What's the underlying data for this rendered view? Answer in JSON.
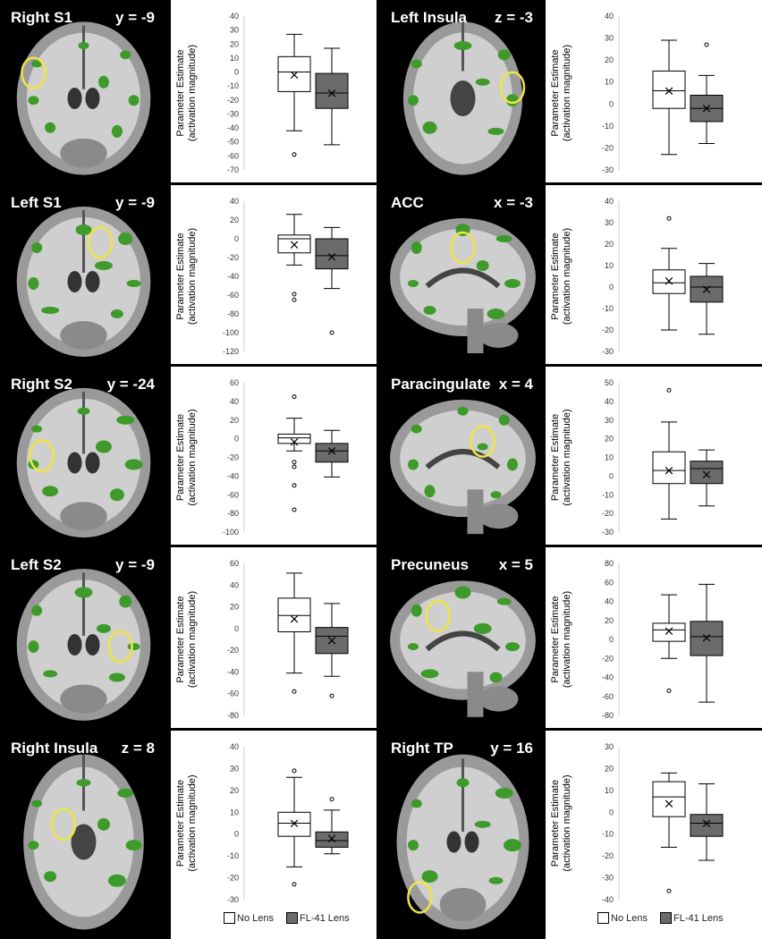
{
  "colors": {
    "no_lens": "#ffffff",
    "fl41_lens": "#6b6b6b",
    "highlight": "#f0e442",
    "activation": "#3e9a2a"
  },
  "legend": {
    "no_lens": "No Lens",
    "fl41": "FL-41 Lens"
  },
  "chart_data": [
    {
      "type": "box",
      "region": "Right S1",
      "coord": "y = -9",
      "view": "coronal",
      "ylabel": "Parameter Estimate",
      "ylabel2": "(activation magnitude)",
      "ylim": [
        -70,
        40
      ],
      "ticks": [
        40,
        30,
        20,
        10,
        0,
        -10,
        -20,
        -30,
        -40,
        -50,
        -60,
        -70
      ],
      "series": [
        {
          "name": "No Lens",
          "whisker_low": -42,
          "q1": -14,
          "median": 0,
          "q3": 11,
          "whisker_high": 27,
          "mean": -2,
          "outliers": [
            -59
          ]
        },
        {
          "name": "FL-41 Lens",
          "whisker_low": -52,
          "q1": -26,
          "median": -15,
          "q3": -1,
          "whisker_high": 17,
          "mean": -15,
          "outliers": []
        }
      ]
    },
    {
      "type": "box",
      "region": "Left Insula",
      "coord": "z = -3",
      "view": "axial",
      "ylabel": "Parameter Estimate",
      "ylabel2": "(activation magnitude)",
      "ylim": [
        -30,
        40
      ],
      "ticks": [
        40,
        30,
        20,
        10,
        0,
        -10,
        -20,
        -30
      ],
      "series": [
        {
          "name": "No Lens",
          "whisker_low": -23,
          "q1": -2,
          "median": 6,
          "q3": 15,
          "whisker_high": 29,
          "mean": 6,
          "outliers": []
        },
        {
          "name": "FL-41 Lens",
          "whisker_low": -18,
          "q1": -8,
          "median": -2,
          "q3": 4,
          "whisker_high": 13,
          "mean": -2,
          "outliers": [
            27
          ]
        }
      ]
    },
    {
      "type": "box",
      "region": "Left S1",
      "coord": "y = -9",
      "view": "coronal",
      "ylabel": "Parameter Estimate",
      "ylabel2": "(activation magnitude)",
      "ylim": [
        -120,
        40
      ],
      "ticks": [
        40,
        20,
        0,
        -20,
        -40,
        -60,
        -80,
        -100,
        -120
      ],
      "series": [
        {
          "name": "No Lens",
          "whisker_low": -28,
          "q1": -15,
          "median": 0,
          "q3": 4,
          "whisker_high": 26,
          "mean": -6,
          "outliers": [
            -59,
            -65
          ]
        },
        {
          "name": "FL-41 Lens",
          "whisker_low": -53,
          "q1": -32,
          "median": -18,
          "q3": 0,
          "whisker_high": 12,
          "mean": -19,
          "outliers": [
            -100
          ]
        }
      ]
    },
    {
      "type": "box",
      "region": "ACC",
      "coord": "x = -3",
      "view": "sagittal",
      "ylabel": "Parameter Estimate",
      "ylabel2": "(activation magnitude)",
      "ylim": [
        -30,
        40
      ],
      "ticks": [
        40,
        30,
        20,
        10,
        0,
        -10,
        -20,
        -30
      ],
      "series": [
        {
          "name": "No Lens",
          "whisker_low": -20,
          "q1": -3,
          "median": 2,
          "q3": 8,
          "whisker_high": 18,
          "mean": 3,
          "outliers": [
            32
          ]
        },
        {
          "name": "FL-41 Lens",
          "whisker_low": -22,
          "q1": -7,
          "median": 0,
          "q3": 5,
          "whisker_high": 11,
          "mean": -1,
          "outliers": []
        }
      ]
    },
    {
      "type": "box",
      "region": "Right S2",
      "coord": "y = -24",
      "view": "coronal",
      "ylabel": "Parameter Estimate",
      "ylabel2": "(activation magnitude)",
      "ylim": [
        -100,
        60
      ],
      "ticks": [
        60,
        40,
        20,
        0,
        -20,
        -40,
        -60,
        -80,
        -100
      ],
      "series": [
        {
          "name": "No Lens",
          "whisker_low": -13,
          "q1": -5,
          "median": 1,
          "q3": 5,
          "whisker_high": 22,
          "mean": -3,
          "outliers": [
            45,
            -25,
            -30,
            -50,
            -76
          ]
        },
        {
          "name": "FL-41 Lens",
          "whisker_low": -41,
          "q1": -25,
          "median": -13,
          "q3": -5,
          "whisker_high": 9,
          "mean": -13,
          "outliers": []
        }
      ]
    },
    {
      "type": "box",
      "region": "Paracingulate",
      "coord": "x = 4",
      "view": "sagittal",
      "ylabel": "Parameter Estimate",
      "ylabel2": "(activation magnitude)",
      "ylim": [
        -30,
        50
      ],
      "ticks": [
        50,
        40,
        30,
        20,
        10,
        0,
        -10,
        -20,
        -30
      ],
      "series": [
        {
          "name": "No Lens",
          "whisker_low": -23,
          "q1": -4,
          "median": 3,
          "q3": 13,
          "whisker_high": 29,
          "mean": 3,
          "outliers": [
            46
          ]
        },
        {
          "name": "FL-41 Lens",
          "whisker_low": -16,
          "q1": -4,
          "median": 4,
          "q3": 8,
          "whisker_high": 14,
          "mean": 1,
          "outliers": []
        }
      ]
    },
    {
      "type": "box",
      "region": "Left S2",
      "coord": "y = -9",
      "view": "coronal",
      "ylabel": "Parameter Estimate",
      "ylabel2": "(activation magnitude)",
      "ylim": [
        -80,
        60
      ],
      "ticks": [
        60,
        40,
        20,
        0,
        -20,
        -40,
        -60,
        -80
      ],
      "series": [
        {
          "name": "No Lens",
          "whisker_low": -41,
          "q1": -3,
          "median": 12,
          "q3": 28,
          "whisker_high": 51,
          "mean": 9,
          "outliers": [
            -58
          ]
        },
        {
          "name": "FL-41 Lens",
          "whisker_low": -44,
          "q1": -23,
          "median": -7,
          "q3": 1,
          "whisker_high": 23,
          "mean": -11,
          "outliers": [
            -62
          ]
        }
      ]
    },
    {
      "type": "box",
      "region": "Precuneus",
      "coord": "x = 5",
      "view": "sagittal",
      "ylabel": "Parameter Estimate",
      "ylabel2": "(activation magnitude)",
      "ylim": [
        -80,
        80
      ],
      "ticks": [
        80,
        60,
        40,
        20,
        0,
        -20,
        -40,
        -60,
        -80
      ],
      "series": [
        {
          "name": "No Lens",
          "whisker_low": -20,
          "q1": -2,
          "median": 10,
          "q3": 17,
          "whisker_high": 47,
          "mean": 9,
          "outliers": [
            -54
          ]
        },
        {
          "name": "FL-41 Lens",
          "whisker_low": -66,
          "q1": -17,
          "median": 3,
          "q3": 19,
          "whisker_high": 58,
          "mean": 2,
          "outliers": []
        }
      ]
    },
    {
      "type": "box",
      "region": "Right Insula",
      "coord": "z = 8",
      "view": "axial",
      "ylabel": "Parameter Estimate",
      "ylabel2": "(activation magnitude)",
      "ylim": [
        -30,
        40
      ],
      "ticks": [
        40,
        30,
        20,
        10,
        0,
        -10,
        -20,
        -30
      ],
      "series": [
        {
          "name": "No Lens",
          "whisker_low": -15,
          "q1": -1,
          "median": 5,
          "q3": 10,
          "whisker_high": 26,
          "mean": 5,
          "outliers": [
            29,
            -23
          ]
        },
        {
          "name": "FL-41 Lens",
          "whisker_low": -9,
          "q1": -6,
          "median": -3,
          "q3": 1,
          "whisker_high": 11,
          "mean": -2,
          "outliers": [
            16
          ]
        }
      ]
    },
    {
      "type": "box",
      "region": "Right TP",
      "coord": "y = 16",
      "view": "coronal_tp",
      "ylabel": "Parameter Estimate",
      "ylabel2": "(activation magnitude)",
      "ylim": [
        -40,
        30
      ],
      "ticks": [
        30,
        20,
        10,
        0,
        -10,
        -20,
        -30,
        -40
      ],
      "series": [
        {
          "name": "No Lens",
          "whisker_low": -16,
          "q1": -2,
          "median": 7,
          "q3": 14,
          "whisker_high": 18,
          "mean": 4,
          "outliers": [
            -36
          ]
        },
        {
          "name": "FL-41 Lens",
          "whisker_low": -22,
          "q1": -11,
          "median": -5,
          "q3": -1,
          "whisker_high": 13,
          "mean": -5,
          "outliers": []
        }
      ]
    }
  ]
}
